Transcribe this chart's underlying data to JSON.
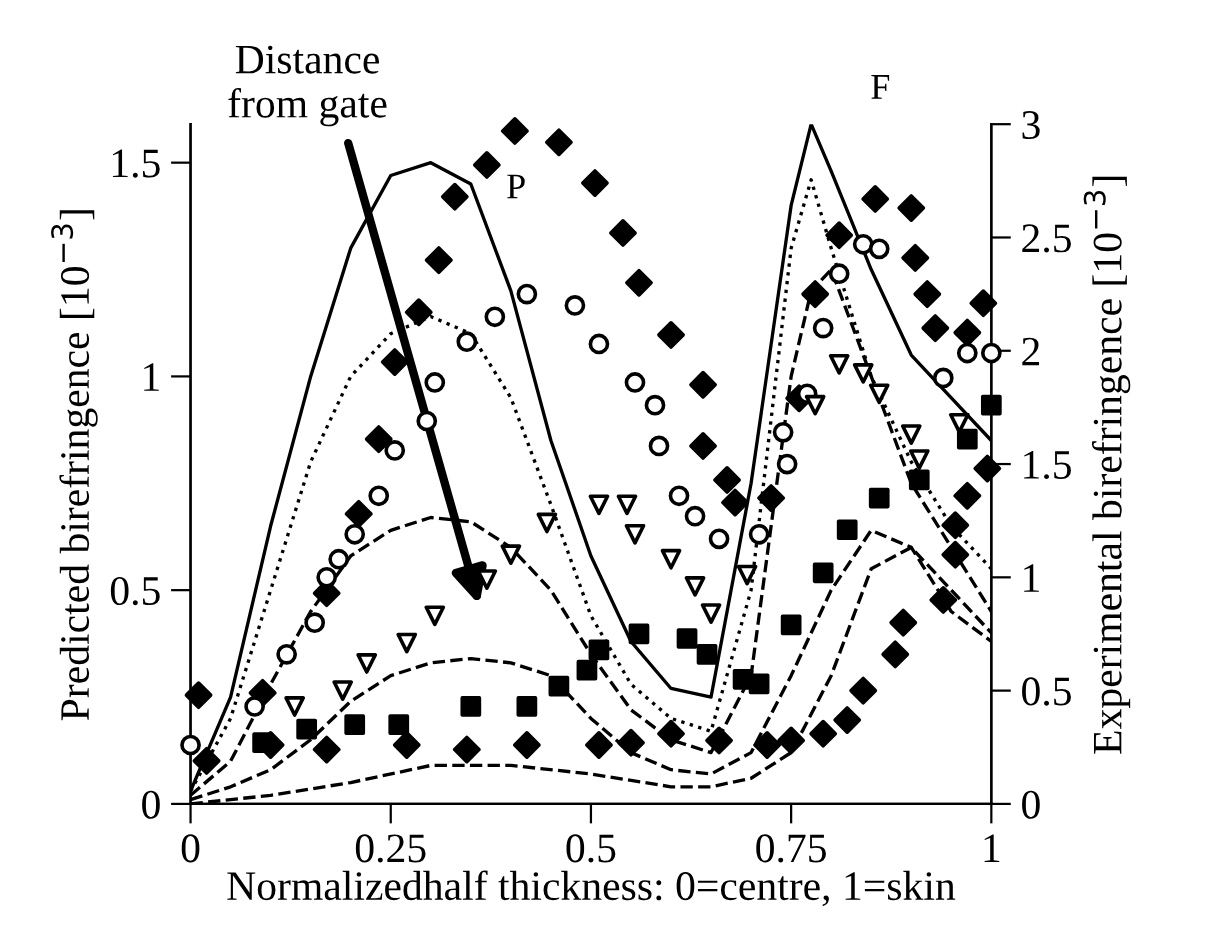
{
  "chart_data": {
    "type": "line",
    "xlabel": "Normalizedhalf thickness: 0=centre, 1=skin",
    "ylabel": "Predicted birefringence [10$^{−3}$]",
    "y2label": "Experimental birefringence [10$^{−3}$]",
    "xlim": [
      0,
      1
    ],
    "xticks": [
      0,
      0.25,
      0.5,
      0.75,
      1
    ],
    "ylim": [
      0,
      1.59
    ],
    "yticks": [
      0,
      0.5,
      1,
      1.5
    ],
    "y2lim": [
      0,
      3
    ],
    "y2ticks": [
      0,
      0.5,
      1,
      1.5,
      2,
      2.5,
      3
    ],
    "grid": false,
    "legend": false,
    "annotations": [
      "Distance\nfrom gate",
      "P",
      "F"
    ],
    "series": [
      {
        "color": "#000000",
        "line_style": "solid",
        "marker": "none",
        "x": [
          0,
          0.05,
          0.1,
          0.15,
          0.2,
          0.25,
          0.3,
          0.35,
          0.4,
          0.45,
          0.5,
          0.55,
          0.6,
          0.65,
          0.7,
          0.75,
          0.775,
          0.8,
          0.85,
          0.9,
          0.95,
          1.0
        ],
        "values": [
          0.03,
          0.25,
          0.65,
          1.0,
          1.3,
          1.47,
          1.5,
          1.45,
          1.2,
          0.85,
          0.58,
          0.38,
          0.27,
          0.25,
          0.75,
          1.4,
          1.59,
          1.48,
          1.25,
          1.05,
          0.95,
          0.85
        ]
      },
      {
        "color": "#000000",
        "line_style": "dotted",
        "marker": "none",
        "x": [
          0,
          0.05,
          0.1,
          0.15,
          0.2,
          0.25,
          0.3,
          0.35,
          0.4,
          0.45,
          0.5,
          0.55,
          0.6,
          0.65,
          0.7,
          0.75,
          0.775,
          0.8,
          0.85,
          0.9,
          0.95,
          1.0
        ],
        "values": [
          0.03,
          0.2,
          0.5,
          0.8,
          1.0,
          1.1,
          1.14,
          1.1,
          0.95,
          0.7,
          0.44,
          0.28,
          0.2,
          0.17,
          0.5,
          1.3,
          1.46,
          1.3,
          1.0,
          0.8,
          0.65,
          0.55
        ]
      },
      {
        "color": "#000000",
        "line_style": "dashed",
        "marker": "none",
        "x": [
          0,
          0.05,
          0.1,
          0.15,
          0.2,
          0.25,
          0.3,
          0.35,
          0.4,
          0.45,
          0.5,
          0.55,
          0.6,
          0.65,
          0.7,
          0.75,
          0.775,
          0.8,
          0.85,
          0.9,
          0.95,
          1.0
        ],
        "values": [
          0.02,
          0.1,
          0.28,
          0.45,
          0.58,
          0.64,
          0.67,
          0.66,
          0.6,
          0.5,
          0.35,
          0.22,
          0.15,
          0.12,
          0.3,
          1.0,
          1.2,
          1.25,
          1.0,
          0.75,
          0.6,
          0.45
        ]
      },
      {
        "color": "#000000",
        "line_style": "dashed",
        "marker": "none",
        "x": [
          0,
          0.05,
          0.1,
          0.15,
          0.2,
          0.25,
          0.3,
          0.35,
          0.4,
          0.45,
          0.5,
          0.55,
          0.6,
          0.65,
          0.7,
          0.75,
          0.8,
          0.85,
          0.9,
          0.95,
          1.0
        ],
        "values": [
          0.01,
          0.04,
          0.08,
          0.15,
          0.24,
          0.3,
          0.33,
          0.34,
          0.33,
          0.3,
          0.2,
          0.12,
          0.08,
          0.07,
          0.12,
          0.3,
          0.5,
          0.64,
          0.6,
          0.45,
          0.38
        ]
      },
      {
        "color": "#000000",
        "line_style": "dashed",
        "marker": "none",
        "x": [
          0,
          0.1,
          0.2,
          0.3,
          0.35,
          0.4,
          0.5,
          0.6,
          0.65,
          0.7,
          0.75,
          0.8,
          0.85,
          0.9,
          0.95,
          1.0
        ],
        "values": [
          0,
          0.02,
          0.05,
          0.09,
          0.09,
          0.09,
          0.07,
          0.04,
          0.04,
          0.06,
          0.12,
          0.3,
          0.55,
          0.6,
          0.5,
          0.4
        ]
      },
      {
        "type": "scatter",
        "axis": "y2",
        "color": "#000000",
        "marker": "diamond",
        "x": [
          0.01,
          0.09,
          0.17,
          0.21,
          0.235,
          0.255,
          0.285,
          0.31,
          0.33,
          0.37,
          0.405,
          0.46,
          0.505,
          0.54,
          0.56,
          0.6,
          0.64,
          0.64,
          0.67,
          0.68,
          0.725,
          0.76,
          0.78,
          0.81,
          0.855,
          0.9,
          0.905,
          0.92,
          0.93,
          0.97,
          0.99
        ],
        "values": [
          0.48,
          0.49,
          0.93,
          1.28,
          1.61,
          1.95,
          2.17,
          2.4,
          2.68,
          2.82,
          2.97,
          2.92,
          2.74,
          2.52,
          2.3,
          2.07,
          1.85,
          1.58,
          1.43,
          1.33,
          1.35,
          1.79,
          2.25,
          2.51,
          2.67,
          2.63,
          2.41,
          2.25,
          2.1,
          2.08,
          2.21
        ]
      },
      {
        "type": "scatter",
        "axis": "y2",
        "color": "#000000",
        "marker": "circle",
        "x": [
          0,
          0.08,
          0.12,
          0.155,
          0.17,
          0.185,
          0.205,
          0.235,
          0.255,
          0.295,
          0.305,
          0.345,
          0.38,
          0.42,
          0.48,
          0.51,
          0.555,
          0.58,
          0.585,
          0.61,
          0.63,
          0.66,
          0.71,
          0.74,
          0.745,
          0.77,
          0.79,
          0.81,
          0.84,
          0.86,
          0.94,
          0.97,
          1.0
        ],
        "values": [
          0.26,
          0.43,
          0.66,
          0.8,
          1.0,
          1.08,
          1.19,
          1.36,
          1.56,
          1.69,
          1.86,
          2.04,
          2.15,
          2.25,
          2.2,
          2.03,
          1.86,
          1.76,
          1.58,
          1.36,
          1.27,
          1.17,
          1.19,
          1.64,
          1.5,
          1.81,
          2.1,
          2.34,
          2.47,
          2.45,
          1.88,
          1.99,
          1.99
        ]
      },
      {
        "type": "scatter",
        "axis": "y2",
        "color": "#000000",
        "marker": "triangle",
        "x": [
          0.13,
          0.19,
          0.22,
          0.27,
          0.305,
          0.37,
          0.4,
          0.445,
          0.51,
          0.545,
          0.555,
          0.6,
          0.63,
          0.65,
          0.695,
          0.78,
          0.81,
          0.84,
          0.86,
          0.9,
          0.91,
          0.96
        ],
        "values": [
          0.43,
          0.5,
          0.62,
          0.71,
          0.83,
          0.99,
          1.1,
          1.24,
          1.32,
          1.32,
          1.19,
          1.08,
          0.96,
          0.84,
          1.01,
          1.76,
          1.94,
          1.9,
          1.81,
          1.63,
          1.52,
          1.68
        ]
      },
      {
        "type": "scatter",
        "axis": "y2",
        "color": "#000000",
        "marker": "square",
        "x": [
          0.09,
          0.145,
          0.205,
          0.26,
          0.35,
          0.42,
          0.46,
          0.495,
          0.51,
          0.56,
          0.62,
          0.645,
          0.69,
          0.71,
          0.75,
          0.79,
          0.82,
          0.86,
          0.91,
          0.97,
          1.0
        ],
        "values": [
          0.27,
          0.33,
          0.35,
          0.35,
          0.43,
          0.43,
          0.52,
          0.59,
          0.68,
          0.75,
          0.73,
          0.66,
          0.55,
          0.53,
          0.79,
          1.02,
          1.21,
          1.35,
          1.43,
          1.61,
          1.76
        ]
      },
      {
        "type": "scatter",
        "axis": "y2",
        "color": "#000000",
        "marker": "diamond",
        "x": [
          0.02,
          0.1,
          0.17,
          0.27,
          0.345,
          0.42,
          0.51,
          0.55,
          0.6,
          0.66,
          0.72,
          0.75,
          0.79,
          0.82,
          0.84,
          0.88,
          0.89,
          0.94,
          0.955,
          0.955,
          0.97,
          0.995
        ],
        "values": [
          0.19,
          0.26,
          0.24,
          0.26,
          0.24,
          0.26,
          0.26,
          0.27,
          0.31,
          0.28,
          0.26,
          0.28,
          0.31,
          0.37,
          0.5,
          0.66,
          0.8,
          0.9,
          1.1,
          1.23,
          1.36,
          1.48
        ]
      }
    ]
  }
}
